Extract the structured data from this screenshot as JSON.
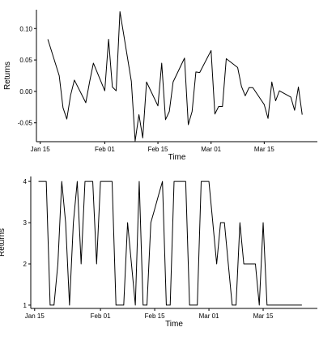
{
  "chart_data": [
    {
      "type": "line",
      "xlabel": "Time",
      "ylabel": "Returns",
      "x_ticks": [
        "Jan 15",
        "Feb 01",
        "Feb 15",
        "Mar 01",
        "Mar 15"
      ],
      "y_ticks": [
        "-0.05",
        "0.00",
        "0.05",
        "0.10"
      ],
      "ylim": [
        -0.08,
        0.13
      ],
      "xlim": [
        "2018-01-14",
        "2018-03-29"
      ],
      "grid": false,
      "series": [
        {
          "x": [
            "2018-01-17",
            "2018-01-20",
            "2018-01-21",
            "2018-01-22",
            "2018-01-23",
            "2018-01-24",
            "2018-01-27",
            "2018-01-28",
            "2018-01-29",
            "2018-02-01",
            "2018-02-02",
            "2018-02-03",
            "2018-02-04",
            "2018-02-05",
            "2018-02-08",
            "2018-02-09",
            "2018-02-10",
            "2018-02-11",
            "2018-02-12",
            "2018-02-15",
            "2018-02-16",
            "2018-02-17",
            "2018-02-18",
            "2018-02-19",
            "2018-02-22",
            "2018-02-23",
            "2018-02-24",
            "2018-02-25",
            "2018-02-26",
            "2018-03-01",
            "2018-03-02",
            "2018-03-03",
            "2018-03-04",
            "2018-03-05",
            "2018-03-08",
            "2018-03-09",
            "2018-03-10",
            "2018-03-11",
            "2018-03-12",
            "2018-03-15",
            "2018-03-16",
            "2018-03-17",
            "2018-03-18",
            "2018-03-19",
            "2018-03-22",
            "2018-03-23",
            "2018-03-24",
            "2018-03-25"
          ],
          "values": [
            0.083,
            0.025,
            -0.026,
            -0.044,
            -0.006,
            0.018,
            -0.018,
            0.015,
            0.045,
            0.001,
            0.083,
            0.007,
            0.001,
            0.127,
            0.016,
            -0.079,
            -0.037,
            -0.074,
            0.015,
            -0.023,
            0.045,
            -0.045,
            -0.032,
            0.015,
            0.053,
            -0.053,
            -0.032,
            0.031,
            0.03,
            0.065,
            -0.036,
            -0.024,
            -0.024,
            0.052,
            0.038,
            0.008,
            -0.007,
            0.006,
            0.006,
            -0.021,
            -0.043,
            0.015,
            -0.015,
            0.001,
            -0.009,
            -0.03,
            0.007,
            -0.037
          ]
        }
      ]
    },
    {
      "type": "line",
      "xlabel": "Time",
      "ylabel": "Returns",
      "x_ticks": [
        "Jan 15",
        "Feb 01",
        "Feb 15",
        "Mar 01",
        "Mar 15"
      ],
      "y_ticks": [
        "1",
        "2",
        "3",
        "4"
      ],
      "ylim": [
        0.92,
        4.12
      ],
      "xlim": [
        "2018-01-14",
        "2018-03-29"
      ],
      "grid": false,
      "series": [
        {
          "x": [
            "2018-01-16",
            "2018-01-17",
            "2018-01-18",
            "2018-01-19",
            "2018-01-20",
            "2018-01-21",
            "2018-01-22",
            "2018-01-23",
            "2018-01-24",
            "2018-01-25",
            "2018-01-26",
            "2018-01-27",
            "2018-01-28",
            "2018-01-29",
            "2018-01-30",
            "2018-01-31",
            "2018-02-01",
            "2018-02-02",
            "2018-02-03",
            "2018-02-04",
            "2018-02-05",
            "2018-02-06",
            "2018-02-07",
            "2018-02-08",
            "2018-02-09",
            "2018-02-10",
            "2018-02-11",
            "2018-02-12",
            "2018-02-13",
            "2018-02-14",
            "2018-02-15",
            "2018-02-16",
            "2018-02-17",
            "2018-02-18",
            "2018-02-19",
            "2018-02-20",
            "2018-02-21",
            "2018-02-22",
            "2018-02-23",
            "2018-02-24",
            "2018-02-25",
            "2018-02-26",
            "2018-02-27",
            "2018-02-28",
            "2018-03-01",
            "2018-03-02",
            "2018-03-03",
            "2018-03-04",
            "2018-03-05",
            "2018-03-06",
            "2018-03-07",
            "2018-03-08",
            "2018-03-09",
            "2018-03-10",
            "2018-03-11",
            "2018-03-12",
            "2018-03-13",
            "2018-03-14",
            "2018-03-15",
            "2018-03-16",
            "2018-03-17",
            "2018-03-18",
            "2018-03-19",
            "2018-03-20",
            "2018-03-21",
            "2018-03-22",
            "2018-03-23",
            "2018-03-24",
            "2018-03-25"
          ],
          "values": [
            4,
            4,
            4,
            1,
            1,
            2,
            4,
            3,
            1,
            3,
            4,
            2,
            4,
            4,
            4,
            2,
            4,
            4,
            4,
            4,
            1,
            1,
            1,
            3,
            2,
            1,
            4,
            1,
            1,
            3,
            3.33,
            3.67,
            4,
            1,
            1,
            4,
            4,
            4,
            4,
            1,
            1,
            1,
            4,
            4,
            4,
            3,
            2,
            3,
            3,
            2,
            1,
            1,
            3,
            2,
            2,
            2,
            2,
            1,
            3,
            1,
            1,
            1,
            1,
            1,
            1,
            1,
            1,
            1,
            1
          ]
        }
      ]
    }
  ]
}
